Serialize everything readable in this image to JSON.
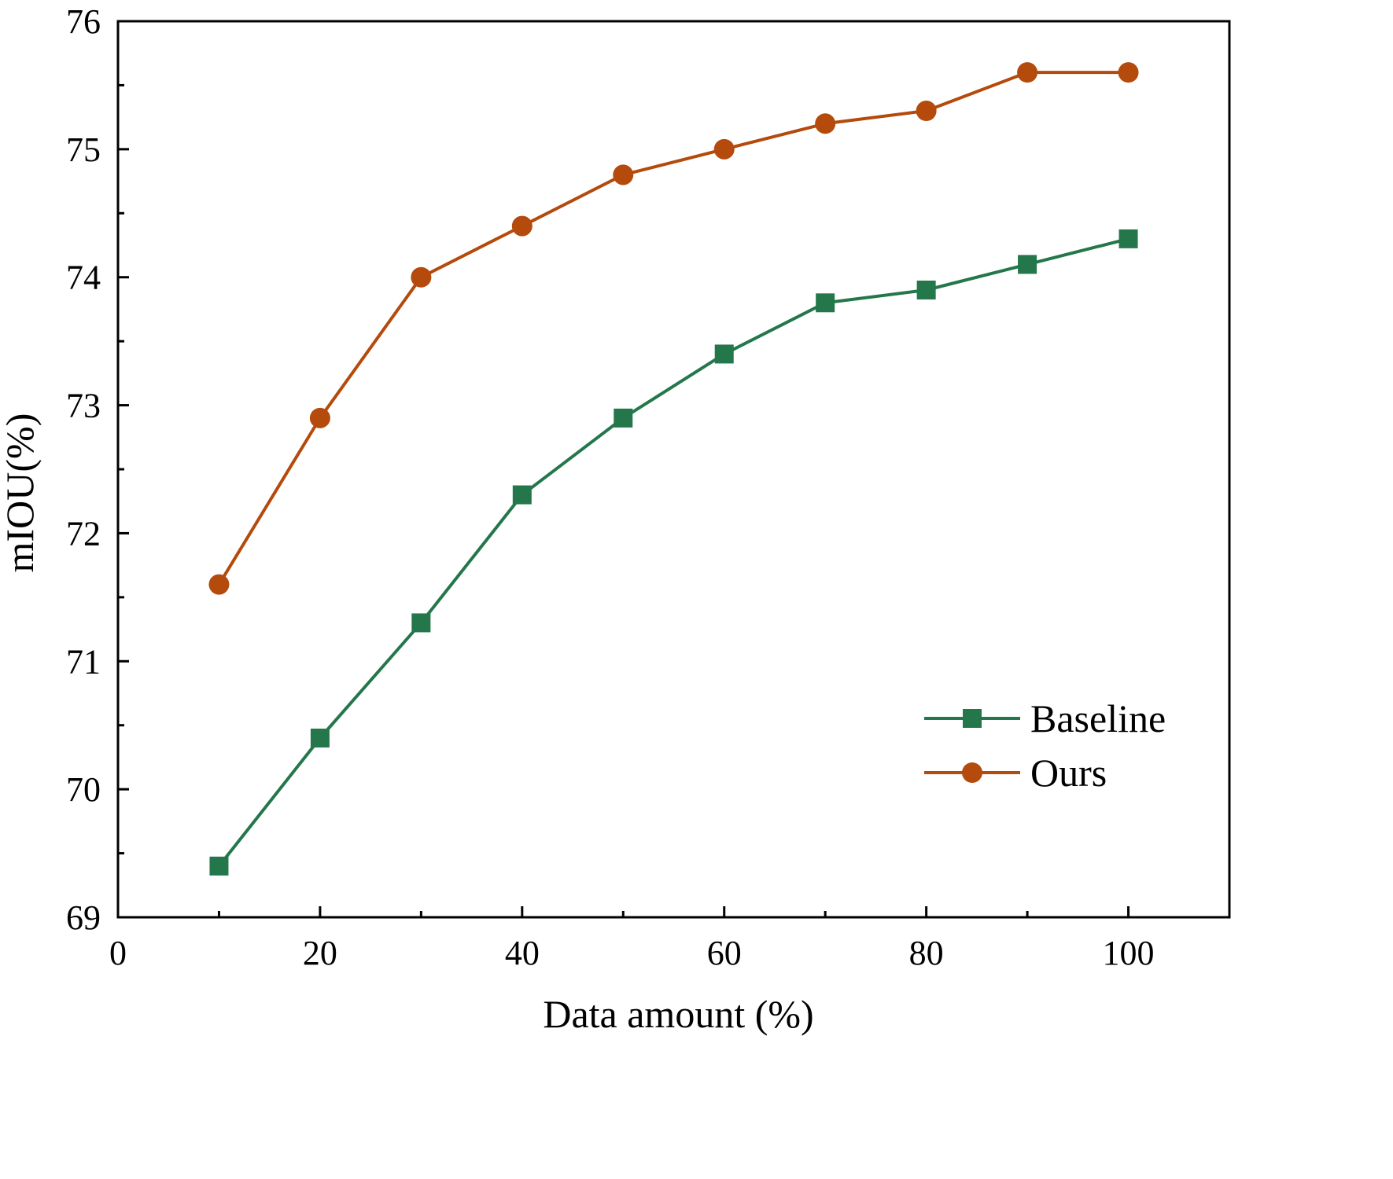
{
  "chart_data": {
    "type": "line",
    "title": "",
    "xlabel": "Data amount (%)",
    "ylabel": "mIOU(%)",
    "xlim": [
      0,
      110
    ],
    "ylim": [
      69,
      76
    ],
    "xticks": [
      0,
      20,
      40,
      60,
      80,
      100
    ],
    "yticks": [
      69,
      70,
      71,
      72,
      73,
      74,
      75,
      76
    ],
    "x_minor_step": 10,
    "y_minor_step": 0.5,
    "grid": false,
    "legend_position": "lower-right",
    "x": [
      10,
      20,
      30,
      40,
      50,
      60,
      70,
      80,
      90,
      100
    ],
    "series": [
      {
        "name": "Baseline",
        "color": "#23774a",
        "marker": "square",
        "values": [
          69.4,
          70.4,
          71.3,
          72.3,
          72.9,
          73.4,
          73.8,
          73.9,
          74.1,
          74.3
        ]
      },
      {
        "name": "Ours",
        "color": "#b44a0c",
        "marker": "circle",
        "values": [
          71.6,
          72.9,
          74.0,
          74.4,
          74.8,
          75.0,
          75.2,
          75.3,
          75.6,
          75.6
        ]
      }
    ]
  }
}
